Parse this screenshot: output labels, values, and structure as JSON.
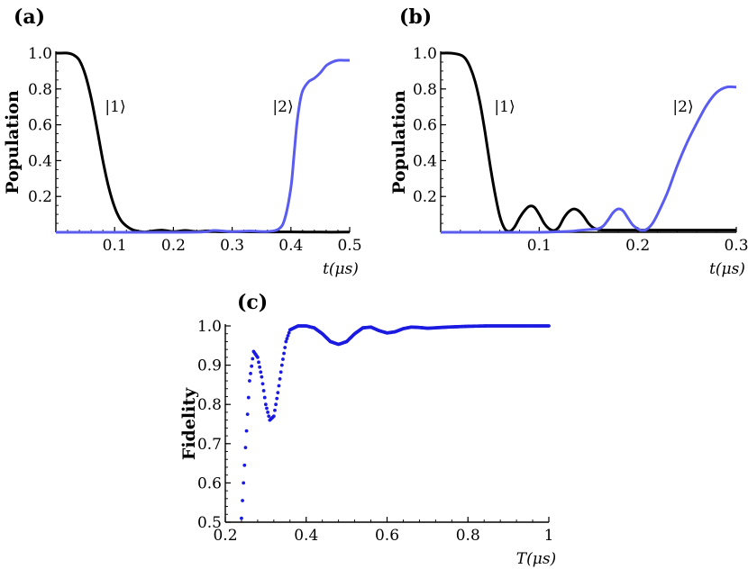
{
  "colors": {
    "state1": "#000000",
    "state2": "#5a5cf0",
    "fidelity": "#1a1ae0",
    "axis": "#000000"
  },
  "chart_data": [
    {
      "panel": "(a)",
      "type": "line",
      "ylabel": "Population",
      "xlabel": "t(μs)",
      "xlim": [
        0,
        0.5
      ],
      "ylim": [
        0,
        1.0
      ],
      "xticks": [
        "0.1",
        "0.2",
        "0.3",
        "0.4",
        "0.5"
      ],
      "yticks": [
        "0.2",
        "0.4",
        "0.6",
        "0.8",
        "1.0"
      ],
      "annotations": [
        "|1⟩",
        "|2⟩"
      ],
      "series": [
        {
          "x": [
            0,
            0.01,
            0.02,
            0.03,
            0.04,
            0.05,
            0.06,
            0.07,
            0.08,
            0.09,
            0.1,
            0.11,
            0.12,
            0.13,
            0.14,
            0.15,
            0.16,
            0.18,
            0.2,
            0.22,
            0.24,
            0.26,
            0.28,
            0.3,
            0.35,
            0.4,
            0.45,
            0.5
          ],
          "y": [
            1.0,
            1.0,
            1.0,
            0.99,
            0.96,
            0.88,
            0.75,
            0.58,
            0.4,
            0.25,
            0.14,
            0.07,
            0.035,
            0.015,
            0.006,
            0.002,
            0.005,
            0.012,
            0.004,
            0.01,
            0.004,
            0.008,
            0.003,
            0.004,
            0.002,
            0.002,
            0.001,
            0.001
          ]
        },
        {
          "x": [
            0,
            0.05,
            0.1,
            0.15,
            0.2,
            0.25,
            0.27,
            0.3,
            0.33,
            0.36,
            0.38,
            0.39,
            0.4,
            0.405,
            0.41,
            0.415,
            0.42,
            0.43,
            0.44,
            0.45,
            0.46,
            0.47,
            0.48,
            0.49,
            0.5
          ],
          "y": [
            0,
            0,
            0,
            0,
            0,
            0.002,
            0.01,
            0.003,
            0.007,
            0.004,
            0.02,
            0.08,
            0.25,
            0.42,
            0.6,
            0.72,
            0.79,
            0.84,
            0.86,
            0.89,
            0.93,
            0.95,
            0.96,
            0.96,
            0.96
          ]
        }
      ]
    },
    {
      "panel": "(b)",
      "type": "line",
      "ylabel": "Population",
      "xlabel": "t(μs)",
      "xlim": [
        0,
        0.3
      ],
      "ylim": [
        0,
        1.0
      ],
      "xticks": [
        "0.1",
        "0.2",
        "0.3"
      ],
      "yticks": [
        "0.2",
        "0.4",
        "0.6",
        "0.8",
        "1.0"
      ],
      "annotations": [
        "|1⟩",
        "|2⟩"
      ],
      "series": [
        {
          "x": [
            0,
            0.01,
            0.02,
            0.025,
            0.03,
            0.035,
            0.04,
            0.045,
            0.05,
            0.055,
            0.06,
            0.065,
            0.07,
            0.075,
            0.08,
            0.085,
            0.09,
            0.095,
            0.1,
            0.105,
            0.11,
            0.115,
            0.12,
            0.125,
            0.13,
            0.135,
            0.14,
            0.145,
            0.15,
            0.155,
            0.16,
            0.165,
            0.17,
            0.18,
            0.2,
            0.25,
            0.3
          ],
          "y": [
            1.0,
            1.0,
            0.99,
            0.97,
            0.92,
            0.84,
            0.72,
            0.56,
            0.38,
            0.22,
            0.09,
            0.02,
            0.005,
            0.03,
            0.08,
            0.12,
            0.145,
            0.14,
            0.1,
            0.05,
            0.02,
            0.01,
            0.03,
            0.08,
            0.115,
            0.13,
            0.12,
            0.09,
            0.05,
            0.025,
            0.015,
            0.012,
            0.012,
            0.012,
            0.012,
            0.012,
            0.012
          ]
        },
        {
          "x": [
            0,
            0.05,
            0.1,
            0.13,
            0.14,
            0.15,
            0.16,
            0.165,
            0.17,
            0.175,
            0.18,
            0.185,
            0.19,
            0.195,
            0.2,
            0.205,
            0.21,
            0.215,
            0.22,
            0.23,
            0.24,
            0.25,
            0.26,
            0.27,
            0.28,
            0.29,
            0.3
          ],
          "y": [
            0,
            0,
            0,
            0.005,
            0.01,
            0.015,
            0.02,
            0.035,
            0.07,
            0.11,
            0.13,
            0.12,
            0.08,
            0.04,
            0.02,
            0.01,
            0.02,
            0.05,
            0.1,
            0.22,
            0.37,
            0.5,
            0.61,
            0.71,
            0.78,
            0.81,
            0.81
          ]
        }
      ]
    },
    {
      "panel": "(c)",
      "type": "scatter",
      "ylabel": "Fidelity",
      "xlabel": "T(μs)",
      "xlim": [
        0.2,
        1.0
      ],
      "ylim": [
        0.5,
        1.0
      ],
      "xticks": [
        "0.2",
        "0.4",
        "0.6",
        "0.8",
        "1"
      ],
      "yticks": [
        "0.5",
        "0.6",
        "0.7",
        "0.8",
        "0.9",
        "1.0"
      ],
      "series": [
        {
          "x": [
            0.24,
            0.25,
            0.26,
            0.27,
            0.28,
            0.29,
            0.3,
            0.31,
            0.32,
            0.33,
            0.34,
            0.35,
            0.36,
            0.38,
            0.4,
            0.42,
            0.44,
            0.46,
            0.48,
            0.5,
            0.52,
            0.54,
            0.56,
            0.58,
            0.6,
            0.62,
            0.64,
            0.66,
            0.68,
            0.7,
            0.75,
            0.8,
            0.85,
            0.9,
            0.95,
            1.0
          ],
          "y": [
            0.51,
            0.69,
            0.86,
            0.935,
            0.92,
            0.87,
            0.8,
            0.76,
            0.77,
            0.83,
            0.9,
            0.96,
            0.99,
            1.0,
            1.0,
            0.995,
            0.98,
            0.96,
            0.953,
            0.96,
            0.98,
            0.995,
            0.997,
            0.988,
            0.982,
            0.985,
            0.993,
            0.997,
            0.996,
            0.994,
            0.997,
            0.999,
            1.0,
            1.0,
            1.0,
            1.0
          ]
        }
      ]
    }
  ]
}
